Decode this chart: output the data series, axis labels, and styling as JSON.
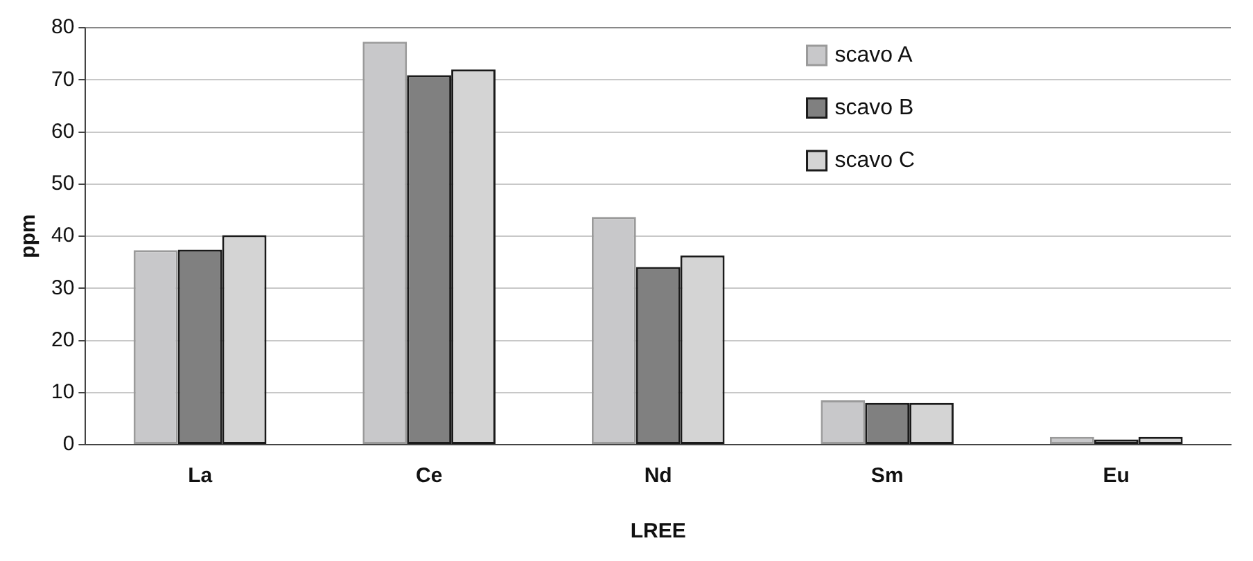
{
  "chart_data": {
    "type": "bar",
    "xlabel": "LREE",
    "ylabel": "ppm",
    "categories": [
      "La",
      "Ce",
      "Nd",
      "Sm",
      "Eu"
    ],
    "series": [
      {
        "name": "scavo A",
        "color": "#c8c8ca",
        "values": [
          37.3,
          77.3,
          43.7,
          8.5,
          1.5
        ]
      },
      {
        "name": "scavo B",
        "color": "#808080",
        "values": [
          37.4,
          70.9,
          34.1,
          8,
          1
        ]
      },
      {
        "name": "scavo C",
        "color": "#d4d4d4",
        "values": [
          40.2,
          72,
          36.3,
          8,
          1.5
        ]
      }
    ],
    "ylim": [
      0,
      80
    ],
    "yticks": [
      0,
      10,
      20,
      30,
      40,
      50,
      60,
      70,
      80
    ],
    "grid": "y",
    "legend": "top right"
  }
}
